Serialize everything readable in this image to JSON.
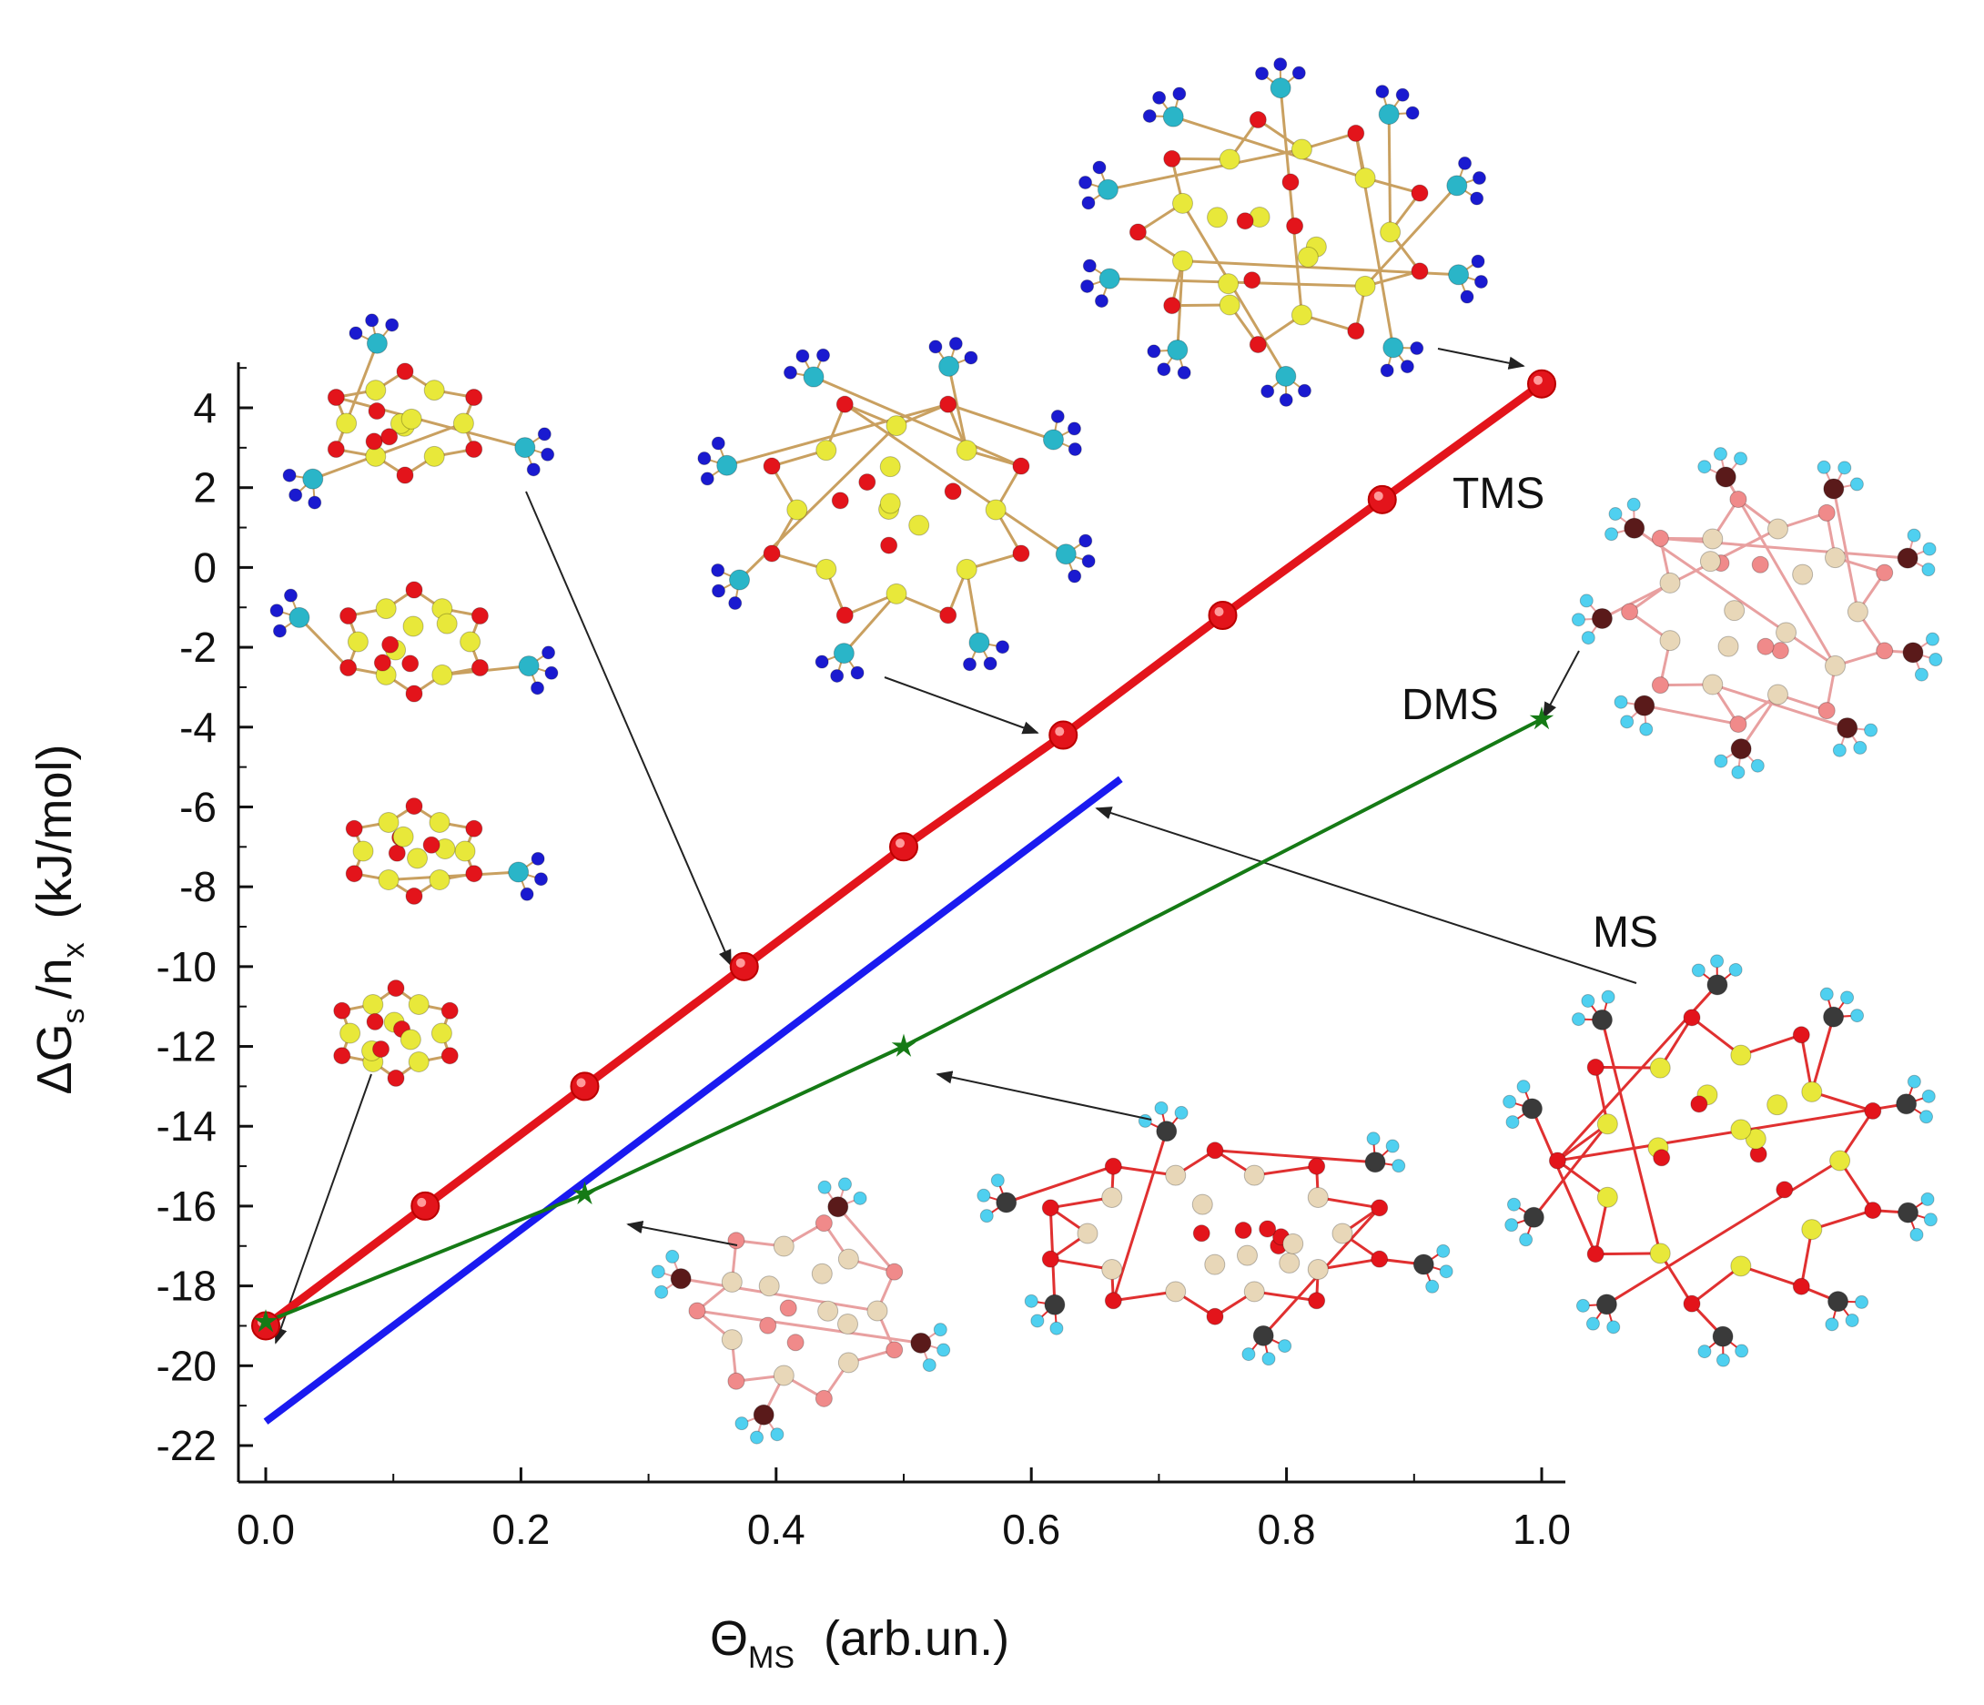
{
  "chart_data": {
    "type": "line",
    "title": "",
    "xlabel": {
      "symbol": "Θ",
      "sub": "MS",
      "unit": "(arb.un.)"
    },
    "ylabel": {
      "symbol": "ΔG",
      "sub1": "s",
      "mid": "/n",
      "sub2": "x",
      "unit": "(kJ/mol)"
    },
    "xlim": [
      -0.02,
      1.02
    ],
    "ylim": [
      -22.5,
      5.2
    ],
    "xticks": [
      "0.0",
      "0.2",
      "0.4",
      "0.6",
      "0.8",
      "1.0"
    ],
    "yticks": [
      "4",
      "2",
      "0",
      "-2",
      "-4",
      "-6",
      "-8",
      "-10",
      "-12",
      "-14",
      "-16",
      "-18",
      "-20",
      "-22"
    ],
    "series": [
      {
        "name": "TMS",
        "color": "#e3141b",
        "marker": "circle",
        "x": [
          0.0,
          0.125,
          0.375,
          0.25,
          0.5,
          0.625,
          0.75,
          0.875,
          1.0
        ],
        "y": [
          -19.0,
          -16.0,
          -10.0,
          -13.0,
          -7.0,
          -4.2,
          -1.2,
          1.7,
          4.6
        ]
      },
      {
        "name": "MS",
        "color": "#1a1af0",
        "marker": "none",
        "x": [
          0.0,
          0.67
        ],
        "y": [
          -21.4,
          -5.3
        ]
      },
      {
        "name": "DMS",
        "color": "#157a15",
        "marker": "star",
        "x": [
          0.0,
          0.25,
          0.5,
          1.0
        ],
        "y": [
          -18.9,
          -15.7,
          -12.0,
          -3.8
        ]
      }
    ],
    "annotations": [
      "TMS",
      "DMS",
      "MS"
    ],
    "colors": {
      "axis": "#111111",
      "arrow": "#222222",
      "si": "#e8e83a",
      "o": "#e3141b",
      "c": "#2ab5c8",
      "h": "#1a1ad0",
      "c_dark": "#3a3a3a",
      "h_light": "#4fd0f0",
      "si_pale": "#e8d7b8",
      "o_pale": "#f08a8a",
      "c_maroon": "#5a1a1a"
    }
  }
}
